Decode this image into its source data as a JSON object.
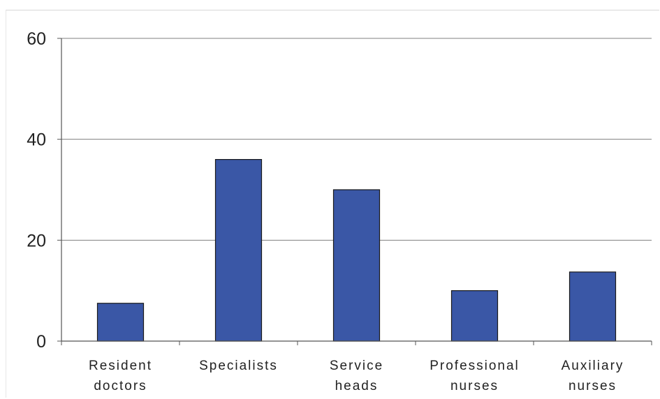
{
  "chart_data": {
    "type": "bar",
    "categories": [
      [
        "Resident",
        "doctors"
      ],
      [
        "Specialists"
      ],
      [
        "Service",
        "heads"
      ],
      [
        "Professional",
        "nurses"
      ],
      [
        "Auxiliary",
        "nurses"
      ]
    ],
    "values": [
      7.5,
      36,
      30,
      10,
      13.7
    ],
    "y_ticks": [
      "0",
      "20",
      "40",
      "60"
    ],
    "ylim": [
      0,
      60
    ],
    "grid": true,
    "legend": false,
    "colors": {
      "bar_fill": "#3a57a6",
      "bar_stroke": "#1a1a1a",
      "axis": "#555555",
      "grid": "#7f7f7f",
      "text": "#222222"
    }
  }
}
